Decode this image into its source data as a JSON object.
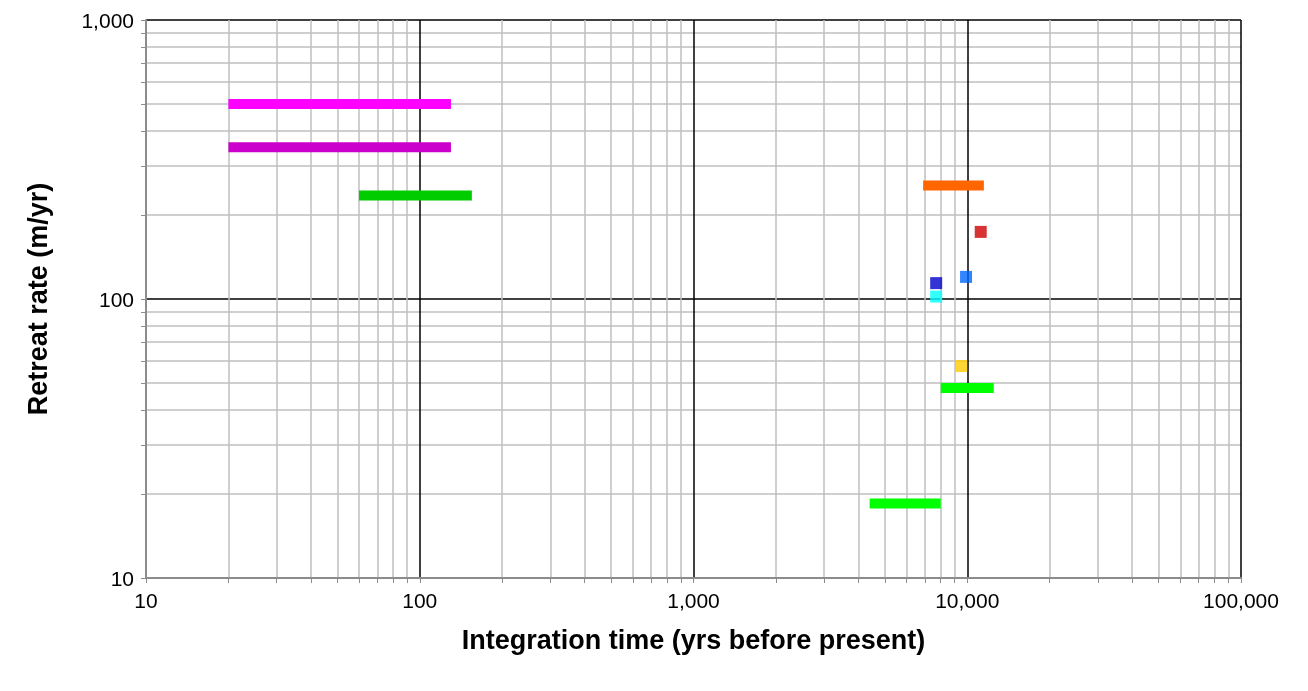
{
  "chart_data": {
    "type": "scatter",
    "xlabel": "Integration time (yrs before present)",
    "ylabel": "Retreat rate (m/yr)",
    "log": "xy",
    "grid": true,
    "marker": "square",
    "xlim": [
      10,
      100000
    ],
    "ylim": [
      10,
      1000
    ],
    "xticks": [
      10,
      {
        "value": 20,
        "label": null
      },
      {
        "value": 30,
        "label": null
      },
      {
        "value": 40,
        "label": null
      },
      {
        "value": 50,
        "label": null
      },
      {
        "value": 60,
        "label": null
      },
      {
        "value": 70,
        "label": null
      },
      {
        "value": 80,
        "label": null
      },
      {
        "value": 90,
        "label": null
      },
      100,
      {
        "value": 200,
        "label": null
      },
      {
        "value": 300,
        "label": null
      },
      {
        "value": 400,
        "label": null
      },
      {
        "value": 500,
        "label": null
      },
      {
        "value": 600,
        "label": null
      },
      {
        "value": 700,
        "label": null
      },
      {
        "value": 800,
        "label": null
      },
      {
        "value": 900,
        "label": null
      },
      {
        "value": 1000,
        "label": "1,000"
      },
      {
        "value": 2000,
        "label": null
      },
      {
        "value": 3000,
        "label": null
      },
      {
        "value": 4000,
        "label": null
      },
      {
        "value": 5000,
        "label": null
      },
      {
        "value": 6000,
        "label": null
      },
      {
        "value": 7000,
        "label": null
      },
      {
        "value": 8000,
        "label": null
      },
      {
        "value": 9000,
        "label": null
      },
      {
        "value": 10000,
        "label": "10,000"
      },
      {
        "value": 20000,
        "label": null
      },
      {
        "value": 30000,
        "label": null
      },
      {
        "value": 40000,
        "label": null
      },
      {
        "value": 50000,
        "label": null
      },
      {
        "value": 60000,
        "label": null
      },
      {
        "value": 70000,
        "label": null
      },
      {
        "value": 80000,
        "label": null
      },
      {
        "value": 90000,
        "label": null
      },
      {
        "value": 100000,
        "label": "100,000"
      }
    ],
    "yticks": [
      10,
      {
        "value": 20,
        "label": null
      },
      {
        "value": 30,
        "label": null
      },
      {
        "value": 40,
        "label": null
      },
      {
        "value": 50,
        "label": null
      },
      {
        "value": 60,
        "label": null
      },
      {
        "value": 70,
        "label": null
      },
      {
        "value": 80,
        "label": null
      },
      {
        "value": 90,
        "label": null
      },
      100,
      {
        "value": 200,
        "label": null
      },
      {
        "value": 300,
        "label": null
      },
      {
        "value": 400,
        "label": null
      },
      {
        "value": 500,
        "label": null
      },
      {
        "value": 600,
        "label": null
      },
      {
        "value": 700,
        "label": null
      },
      {
        "value": 800,
        "label": null
      },
      {
        "value": 900,
        "label": null
      },
      {
        "value": 1000,
        "label": "1,000"
      }
    ],
    "series": [
      {
        "type": "line",
        "marker": "none",
        "color": "#ff00ff",
        "x": [
          20,
          130
        ],
        "values": [
          500,
          500
        ]
      },
      {
        "type": "line",
        "marker": "none",
        "color": "#cc00cc",
        "x": [
          20,
          130
        ],
        "values": [
          350,
          350
        ]
      },
      {
        "type": "line",
        "marker": "none",
        "color": "#00cc00",
        "x": [
          60,
          155
        ],
        "values": [
          235,
          235
        ]
      },
      {
        "type": "line",
        "marker": "none",
        "color": "#ff6600",
        "x": [
          6900,
          11500
        ],
        "values": [
          255,
          255
        ]
      },
      {
        "type": "line",
        "marker": "none",
        "color": "#00ff00",
        "x": [
          8000,
          12500
        ],
        "values": [
          48,
          48
        ]
      },
      {
        "type": "line",
        "marker": "none",
        "color": "#00ff00",
        "x": [
          4400,
          8000
        ],
        "values": [
          18.5,
          18.5
        ]
      },
      {
        "color": "#cc0000",
        "x": [
          11200
        ],
        "values": [
          174
        ]
      },
      {
        "color": "#0066ff",
        "x": [
          9900
        ],
        "values": [
          120
        ]
      },
      {
        "color": "#0000cc",
        "x": [
          7700
        ],
        "values": [
          114
        ]
      },
      {
        "color": "#00ffff",
        "x": [
          7700
        ],
        "values": [
          102
        ]
      },
      {
        "color": "#ffcc00",
        "x": [
          9500
        ],
        "values": [
          57.5
        ]
      }
    ]
  }
}
